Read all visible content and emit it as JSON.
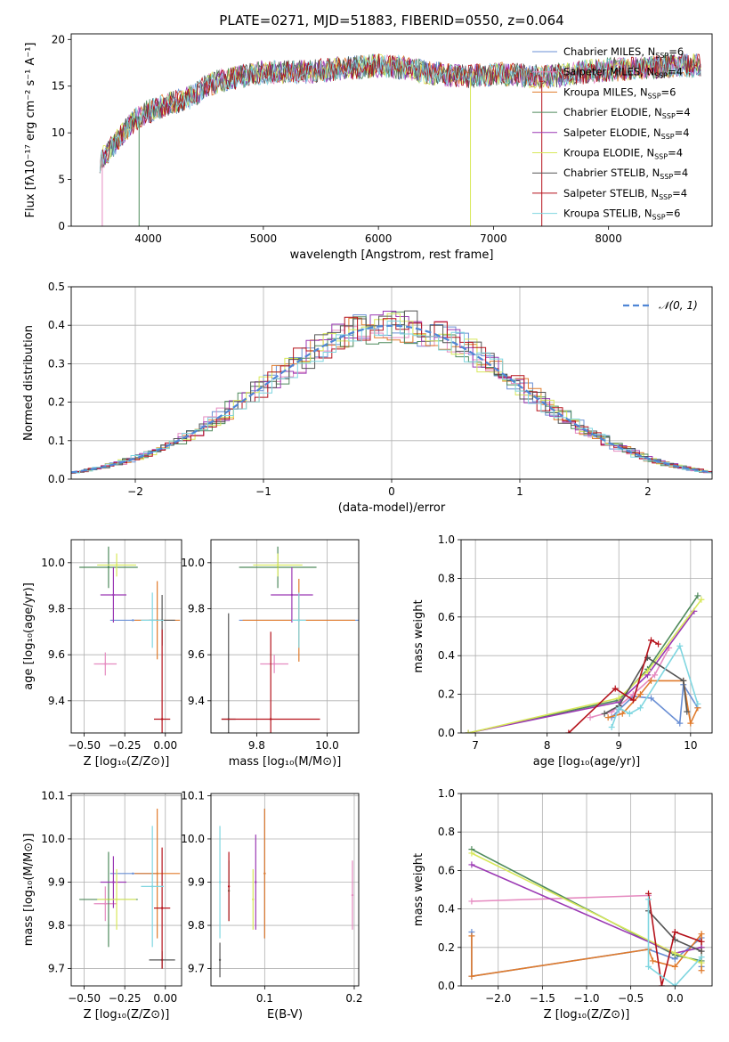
{
  "figure_title": "PLATE=0271, MJD=51883, FIBERID=0550, z=0.064",
  "colors": {
    "Chabrier MILES": "#6a8fd4",
    "Salpeter MILES": "#e58ac0",
    "Kroupa MILES": "#e07b2c",
    "Chabrier ELODIE": "#4f8a5c",
    "Salpeter ELODIE": "#9b38b4",
    "Kroupa ELODIE": "#d8e85a",
    "Chabrier STELIB": "#555555",
    "Salpeter STELIB": "#b5121b",
    "Kroupa STELIB": "#7fd6e0"
  },
  "legend_spectrum": [
    {
      "model": "Chabrier MILES",
      "base": "Chabrier MILES, N",
      "sub": "SSP",
      "tail": "=6"
    },
    {
      "model": "Salpeter MILES",
      "base": "Salpeter MILES, N",
      "sub": "SSP",
      "tail": "=4"
    },
    {
      "model": "Kroupa MILES",
      "base": "Kroupa MILES, N",
      "sub": "SSP",
      "tail": "=6"
    },
    {
      "model": "Chabrier ELODIE",
      "base": "Chabrier ELODIE, N",
      "sub": "SSP",
      "tail": "=4"
    },
    {
      "model": "Salpeter ELODIE",
      "base": "Salpeter ELODIE, N",
      "sub": "SSP",
      "tail": "=4"
    },
    {
      "model": "Kroupa ELODIE",
      "base": "Kroupa ELODIE, N",
      "sub": "SSP",
      "tail": "=4"
    },
    {
      "model": "Chabrier STELIB",
      "base": "Chabrier STELIB, N",
      "sub": "SSP",
      "tail": "=4"
    },
    {
      "model": "Salpeter STELIB",
      "base": "Salpeter STELIB, N",
      "sub": "SSP",
      "tail": "=4"
    },
    {
      "model": "Kroupa STELIB",
      "base": "Kroupa STELIB, N",
      "sub": "SSP",
      "tail": "=6"
    }
  ],
  "chart_data": [
    {
      "id": "spectrum",
      "type": "line",
      "xlabel": "wavelength [Angstrom, rest frame]",
      "ylabel": "Flux [fλ10⁻¹⁷ erg cm⁻² s⁻¹ A⁻¹]",
      "xlim": [
        3330,
        8900
      ],
      "ylim": [
        0,
        20.6
      ],
      "xticks": [
        4000,
        5000,
        6000,
        7000,
        8000
      ],
      "yticks": [
        0,
        5,
        10,
        15,
        20
      ],
      "grid": false,
      "legend": "right",
      "continuum": {
        "x": [
          3580,
          3650,
          3750,
          3850,
          3950,
          4050,
          4150,
          4300,
          4400,
          4500,
          4600,
          4800,
          5000,
          5200,
          5400,
          5600,
          5800,
          6000,
          6200,
          6400,
          6600,
          6800,
          7000,
          7200,
          7400,
          7600,
          7800,
          8000,
          8200,
          8400,
          8600,
          8800
        ],
        "y": [
          7.0,
          8.0,
          9.5,
          11.0,
          12.0,
          12.5,
          13.0,
          13.5,
          14.0,
          15.0,
          15.5,
          16.0,
          16.5,
          16.5,
          16.5,
          16.8,
          17.0,
          17.2,
          17.0,
          16.5,
          16.2,
          16.0,
          16.3,
          16.2,
          16.0,
          16.2,
          16.5,
          16.8,
          16.8,
          17.0,
          17.2,
          17.3
        ]
      },
      "spikes": [
        {
          "x": 3600,
          "y": 0
        },
        {
          "x": 3920,
          "y": 0
        },
        {
          "x": 6800,
          "y": 0
        },
        {
          "x": 7420,
          "y": 0
        }
      ]
    },
    {
      "id": "residuals",
      "type": "line",
      "xlabel": "(data-model)/error",
      "ylabel": "Normed distribution",
      "xlim": [
        -2.5,
        2.5
      ],
      "ylim": [
        0,
        0.5
      ],
      "xticks": [
        -2,
        -1,
        0,
        1,
        2
      ],
      "yticks": [
        0.0,
        0.1,
        0.2,
        0.3,
        0.4,
        0.5
      ],
      "grid": true,
      "legend": "top-right",
      "legend_label": "𝒩(0, 1)",
      "gaussian": {
        "mu": 0,
        "sigma": 1
      }
    },
    {
      "id": "age-vs-Z",
      "type": "scatter",
      "xlabel": "Z [log₁₀(Z/Z⊙)]",
      "ylabel": "age  [log₁₀(age/yr)]",
      "xlim": [
        -0.58,
        0.1
      ],
      "ylim": [
        9.26,
        10.1
      ],
      "xticks": [
        -0.5,
        -0.25,
        0.0
      ],
      "yticks": [
        9.4,
        9.6,
        9.8,
        10.0
      ],
      "grid": true,
      "points": [
        {
          "model": "Chabrier MILES",
          "x": -0.2,
          "y": 9.75,
          "xerr": 0.14,
          "yerr": 0.0
        },
        {
          "model": "Salpeter MILES",
          "x": -0.37,
          "y": 9.56,
          "xerr": 0.07,
          "yerr": 0.05
        },
        {
          "model": "Kroupa MILES",
          "x": -0.05,
          "y": 9.75,
          "xerr": 0.14,
          "yerr": 0.17
        },
        {
          "model": "Chabrier ELODIE",
          "x": -0.35,
          "y": 9.98,
          "xerr": 0.18,
          "yerr": 0.09
        },
        {
          "model": "Salpeter ELODIE",
          "x": -0.32,
          "y": 9.86,
          "xerr": 0.08,
          "yerr": 0.12
        },
        {
          "model": "Kroupa ELODIE",
          "x": -0.3,
          "y": 9.99,
          "xerr": 0.12,
          "yerr": 0.05
        },
        {
          "model": "Chabrier STELIB",
          "x": -0.02,
          "y": 9.75,
          "xerr": 0.08,
          "yerr": 0.11
        },
        {
          "model": "Salpeter STELIB",
          "x": -0.02,
          "y": 9.32,
          "xerr": 0.05,
          "yerr": 0.39
        },
        {
          "model": "Kroupa STELIB",
          "x": -0.08,
          "y": 9.75,
          "xerr": 0.07,
          "yerr": 0.12
        }
      ]
    },
    {
      "id": "age-vs-mass",
      "type": "scatter",
      "xlabel": "mass [log₁₀(M/M⊙)]",
      "ylabel": "",
      "xlim": [
        9.67,
        10.09
      ],
      "ylim": [
        9.26,
        10.1
      ],
      "xticks": [
        9.8,
        10.0
      ],
      "yticks": [
        9.4,
        9.6,
        9.8,
        10.0
      ],
      "grid": true,
      "points": [
        {
          "model": "Chabrier MILES",
          "x": 9.92,
          "y": 9.75,
          "xerr": 0.17,
          "yerr": 0.0
        },
        {
          "model": "Salpeter MILES",
          "x": 9.85,
          "y": 9.56,
          "xerr": 0.04,
          "yerr": 0.04
        },
        {
          "model": "Kroupa MILES",
          "x": 9.92,
          "y": 9.75,
          "xerr": 0.16,
          "yerr": 0.18
        },
        {
          "model": "Chabrier ELODIE",
          "x": 9.86,
          "y": 9.98,
          "xerr": 0.11,
          "yerr": 0.09
        },
        {
          "model": "Salpeter ELODIE",
          "x": 9.9,
          "y": 9.86,
          "xerr": 0.06,
          "yerr": 0.12
        },
        {
          "model": "Kroupa ELODIE",
          "x": 9.86,
          "y": 9.99,
          "xerr": 0.07,
          "yerr": 0.05
        },
        {
          "model": "Chabrier STELIB",
          "x": 9.72,
          "y": 9.32,
          "xerr": 0.02,
          "yerr": 0.46
        },
        {
          "model": "Salpeter STELIB",
          "x": 9.84,
          "y": 9.32,
          "xerr": 0.14,
          "yerr": 0.38
        },
        {
          "model": "Kroupa STELIB",
          "x": 9.92,
          "y": 9.75,
          "xerr": 0.02,
          "yerr": 0.12
        }
      ]
    },
    {
      "id": "weight-vs-age",
      "type": "line",
      "xlabel": "age  [log₁₀(age/yr)]",
      "ylabel": "mass weight",
      "xlim": [
        6.8,
        10.3
      ],
      "ylim": [
        0,
        1.0
      ],
      "xticks": [
        7,
        8,
        9,
        10
      ],
      "yticks": [
        0.0,
        0.2,
        0.4,
        0.6,
        0.8,
        1.0
      ],
      "grid": true,
      "series": [
        {
          "model": "Chabrier MILES",
          "x": [
            8.9,
            9.0,
            9.2,
            9.45,
            9.85,
            9.9,
            10.1
          ],
          "y": [
            0.08,
            0.12,
            0.19,
            0.18,
            0.05,
            0.25,
            0.13
          ]
        },
        {
          "model": "Salpeter MILES",
          "x": [
            8.6,
            8.9,
            9.2,
            9.5,
            9.7
          ],
          "y": [
            0.08,
            0.11,
            0.2,
            0.3,
            0.44
          ]
        },
        {
          "model": "Kroupa MILES",
          "x": [
            8.85,
            9.05,
            9.3,
            9.45,
            9.9,
            10.0,
            10.1
          ],
          "y": [
            0.08,
            0.1,
            0.2,
            0.27,
            0.27,
            0.05,
            0.13
          ]
        },
        {
          "model": "Chabrier ELODIE",
          "x": [
            6.9,
            9.0,
            9.4,
            10.1
          ],
          "y": [
            0.0,
            0.17,
            0.33,
            0.71
          ]
        },
        {
          "model": "Salpeter ELODIE",
          "x": [
            6.9,
            9.0,
            9.4,
            10.05
          ],
          "y": [
            0.0,
            0.16,
            0.3,
            0.63
          ]
        },
        {
          "model": "Kroupa ELODIE",
          "x": [
            6.9,
            9.0,
            9.4,
            10.15
          ],
          "y": [
            0.0,
            0.18,
            0.32,
            0.69
          ]
        },
        {
          "model": "Chabrier STELIB",
          "x": [
            8.8,
            9.0,
            9.4,
            9.9,
            9.95
          ],
          "y": [
            0.1,
            0.14,
            0.39,
            0.27,
            0.11
          ]
        },
        {
          "model": "Salpeter STELIB",
          "x": [
            8.3,
            8.95,
            9.2,
            9.45,
            9.55
          ],
          "y": [
            0.0,
            0.23,
            0.17,
            0.48,
            0.46
          ]
        },
        {
          "model": "Kroupa STELIB",
          "x": [
            8.9,
            9.0,
            9.15,
            9.3,
            9.85,
            10.1
          ],
          "y": [
            0.03,
            0.13,
            0.1,
            0.13,
            0.45,
            0.15
          ]
        }
      ]
    },
    {
      "id": "mass-vs-Z",
      "type": "scatter",
      "xlabel": "Z [log₁₀(Z/Z⊙)]",
      "ylabel": "mass [log₁₀(M/M⊙)]",
      "xlim": [
        -0.58,
        0.1
      ],
      "ylim": [
        9.66,
        10.105
      ],
      "xticks": [
        -0.5,
        -0.25,
        0.0
      ],
      "yticks": [
        9.7,
        9.8,
        9.9,
        10.0,
        10.1
      ],
      "grid": true,
      "points": [
        {
          "model": "Chabrier MILES",
          "x": -0.2,
          "y": 9.92,
          "xerr": 0.14,
          "yerr": 0.0
        },
        {
          "model": "Salpeter MILES",
          "x": -0.37,
          "y": 9.85,
          "xerr": 0.07,
          "yerr": 0.04
        },
        {
          "model": "Kroupa MILES",
          "x": -0.05,
          "y": 9.92,
          "xerr": 0.14,
          "yerr": 0.15
        },
        {
          "model": "Chabrier ELODIE",
          "x": -0.35,
          "y": 9.86,
          "xerr": 0.18,
          "yerr": 0.11
        },
        {
          "model": "Salpeter ELODIE",
          "x": -0.32,
          "y": 9.9,
          "xerr": 0.08,
          "yerr": 0.06
        },
        {
          "model": "Kroupa ELODIE",
          "x": -0.3,
          "y": 9.86,
          "xerr": 0.12,
          "yerr": 0.07
        },
        {
          "model": "Chabrier STELIB",
          "x": -0.02,
          "y": 9.72,
          "xerr": 0.08,
          "yerr": 0.02
        },
        {
          "model": "Salpeter STELIB",
          "x": -0.02,
          "y": 9.84,
          "xerr": 0.05,
          "yerr": 0.14
        },
        {
          "model": "Kroupa STELIB",
          "x": -0.08,
          "y": 9.89,
          "xerr": 0.07,
          "yerr": 0.14
        }
      ]
    },
    {
      "id": "mass-vs-EBV",
      "type": "scatter",
      "xlabel": "E(B-V)",
      "ylabel": "",
      "xlim": [
        0.04,
        0.205
      ],
      "ylim": [
        9.66,
        10.105
      ],
      "xticks": [
        0.1,
        0.2
      ],
      "yticks": [
        9.7,
        9.8,
        9.9,
        10.0,
        10.1
      ],
      "grid": true,
      "points": [
        {
          "model": "Chabrier MILES",
          "x": 0.1,
          "y": 9.92,
          "xerr": 0,
          "yerr": 0.15
        },
        {
          "model": "Salpeter MILES",
          "x": 0.198,
          "y": 9.87,
          "xerr": 0,
          "yerr": 0.08
        },
        {
          "model": "Kroupa MILES",
          "x": 0.1,
          "y": 9.92,
          "xerr": 0,
          "yerr": 0.15
        },
        {
          "model": "Chabrier ELODIE",
          "x": 0.06,
          "y": 9.88,
          "xerr": 0,
          "yerr": 0.07
        },
        {
          "model": "Salpeter ELODIE",
          "x": 0.09,
          "y": 9.9,
          "xerr": 0,
          "yerr": 0.11
        },
        {
          "model": "Kroupa ELODIE",
          "x": 0.087,
          "y": 9.86,
          "xerr": 0,
          "yerr": 0.07
        },
        {
          "model": "Chabrier STELIB",
          "x": 0.05,
          "y": 9.72,
          "xerr": 0,
          "yerr": 0.04
        },
        {
          "model": "Salpeter STELIB",
          "x": 0.06,
          "y": 9.89,
          "xerr": 0,
          "yerr": 0.08
        },
        {
          "model": "Kroupa STELIB",
          "x": 0.05,
          "y": 9.9,
          "xerr": 0,
          "yerr": 0.13
        }
      ]
    },
    {
      "id": "weight-vs-Z",
      "type": "line",
      "xlabel": "Z [log₁₀(Z/Z⊙)]",
      "ylabel": "mass weight",
      "xlim": [
        -2.42,
        0.42
      ],
      "ylim": [
        0,
        1.0
      ],
      "xticks": [
        -2.0,
        -1.5,
        -1.0,
        -0.5,
        0.0
      ],
      "yticks": [
        0.0,
        0.2,
        0.4,
        0.6,
        0.8,
        1.0
      ],
      "grid": true,
      "series": [
        {
          "model": "Chabrier MILES",
          "x": [
            -2.3,
            -2.3,
            -0.3,
            0.0,
            0.3,
            0.3
          ],
          "y": [
            0.28,
            0.05,
            0.19,
            0.14,
            0.25,
            0.1
          ]
        },
        {
          "model": "Salpeter MILES",
          "x": [
            -2.3,
            -0.3
          ],
          "y": [
            0.44,
            0.47
          ]
        },
        {
          "model": "Kroupa MILES",
          "x": [
            -2.3,
            -2.3,
            -0.3,
            -0.25,
            0.0,
            0.3,
            0.3,
            0.3
          ],
          "y": [
            0.26,
            0.05,
            0.19,
            0.13,
            0.1,
            0.27,
            0.2,
            0.08
          ]
        },
        {
          "model": "Chabrier ELODIE",
          "x": [
            -2.3,
            0.0,
            0.3
          ],
          "y": [
            0.71,
            0.16,
            0.13
          ]
        },
        {
          "model": "Salpeter ELODIE",
          "x": [
            -2.3,
            0.0,
            0.3
          ],
          "y": [
            0.63,
            0.17,
            0.2
          ]
        },
        {
          "model": "Kroupa ELODIE",
          "x": [
            -2.3,
            0.0,
            0.3
          ],
          "y": [
            0.69,
            0.17,
            0.12
          ]
        },
        {
          "model": "Chabrier STELIB",
          "x": [
            -0.3,
            0.0,
            0.3
          ],
          "y": [
            0.39,
            0.24,
            0.18
          ]
        },
        {
          "model": "Salpeter STELIB",
          "x": [
            -0.3,
            -0.15,
            0.0,
            0.3
          ],
          "y": [
            0.48,
            0.0,
            0.28,
            0.23
          ]
        },
        {
          "model": "Kroupa STELIB",
          "x": [
            -0.3,
            -0.3,
            0.0,
            0.3
          ],
          "y": [
            0.45,
            0.1,
            0.0,
            0.15
          ]
        }
      ]
    }
  ]
}
